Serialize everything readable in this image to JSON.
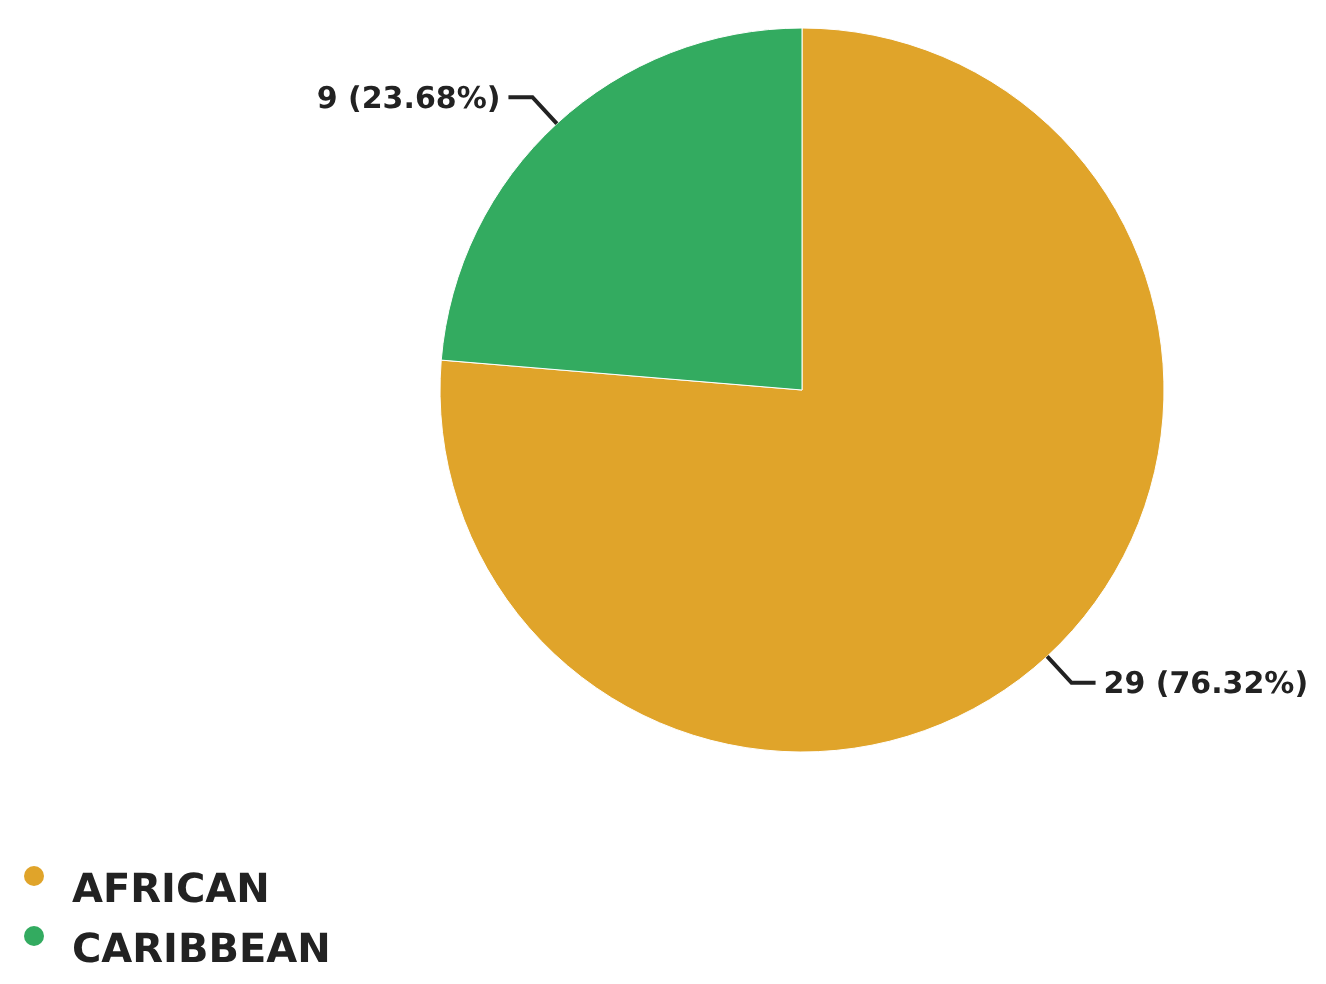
{
  "chart_data": {
    "type": "pie",
    "categories": [
      "AFRICAN",
      "CARIBBEAN"
    ],
    "values": [
      29,
      9
    ],
    "colors": [
      "#e0a42a",
      "#33ab60"
    ],
    "value_labels": [
      "29 (76.32%)",
      "9 (23.68%)"
    ],
    "legend": "bottom left"
  }
}
